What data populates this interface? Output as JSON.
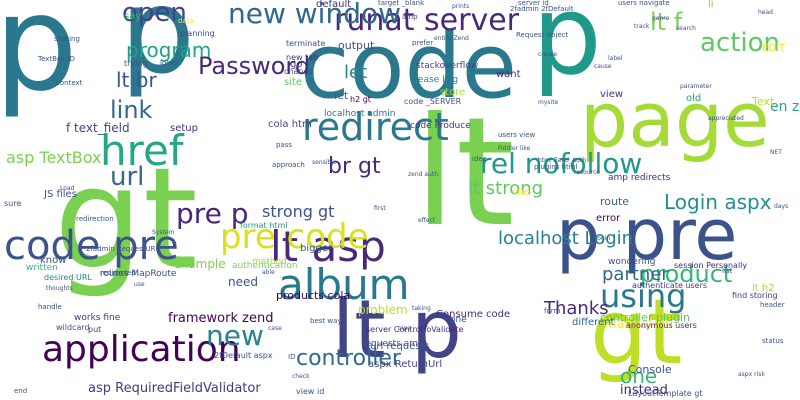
{
  "words": [
    {
      "text": "p",
      "color": "#2a788e"
    },
    {
      "text": "gt",
      "color": "#7ad151"
    },
    {
      "text": "lt",
      "color": "#7ad151"
    },
    {
      "text": "code",
      "color": "#2a788e"
    },
    {
      "text": "page",
      "color": "#a5db36"
    },
    {
      "text": "p pre",
      "color": "#3b528b"
    },
    {
      "text": "p",
      "color": "#2a788e"
    },
    {
      "text": "gt",
      "color": "#bddf26"
    },
    {
      "text": "p",
      "color": "#1f9a8a"
    },
    {
      "text": "lt p",
      "color": "#414487"
    },
    {
      "text": "album",
      "color": "#2a788e"
    },
    {
      "text": "lt asp",
      "color": "#482878"
    },
    {
      "text": "code pre",
      "color": "#3b528b"
    },
    {
      "text": "application",
      "color": "#440154"
    },
    {
      "text": "pre code",
      "color": "#d8e219"
    },
    {
      "text": "href",
      "color": "#22a884"
    },
    {
      "text": "redirect",
      "color": "#2a788e"
    },
    {
      "text": "runat server",
      "color": "#482878"
    },
    {
      "text": "open",
      "color": "#414487"
    },
    {
      "text": "new window",
      "color": "#31688e"
    },
    {
      "text": "using",
      "color": "#2a788e"
    },
    {
      "text": "rel nofollow",
      "color": "#1f9a8a"
    },
    {
      "text": "pre p",
      "color": "#482878"
    },
    {
      "text": "url",
      "color": "#31688e"
    },
    {
      "text": "new",
      "color": "#26828e"
    },
    {
      "text": "action",
      "color": "#5ec962"
    },
    {
      "text": "product",
      "color": "#35b779"
    },
    {
      "text": "Password",
      "color": "#482878"
    },
    {
      "text": "link",
      "color": "#31688e"
    },
    {
      "text": "controller",
      "color": "#31688e"
    },
    {
      "text": "lt f",
      "color": "#7ad151"
    },
    {
      "text": "br gt",
      "color": "#482878"
    },
    {
      "text": "Login aspx",
      "color": "#21918c"
    },
    {
      "text": "Thanks",
      "color": "#482878"
    },
    {
      "text": "lt strong",
      "color": "#5ec962"
    },
    {
      "text": "localhost Login",
      "color": "#26828e"
    },
    {
      "text": "one",
      "color": "#35b779"
    },
    {
      "text": "program",
      "color": "#20a486"
    },
    {
      "text": "lt br",
      "color": "#3b528b"
    },
    {
      "text": "partner",
      "color": "#31688e"
    },
    {
      "text": "strong gt",
      "color": "#3b528b"
    },
    {
      "text": "asp TextBox",
      "color": "#7ad151"
    },
    {
      "text": "let",
      "color": "#26828e"
    },
    {
      "text": "en zend",
      "color": "#22a884"
    },
    {
      "text": "asp RequiredFieldValidator",
      "color": "#443983"
    },
    {
      "text": "framework zend",
      "color": "#440154"
    },
    {
      "text": "manual en",
      "color": "#fde725"
    },
    {
      "text": "problem",
      "color": "#b5de2b"
    },
    {
      "text": "instead",
      "color": "#482878"
    },
    {
      "text": "f text_field",
      "color": "#414487"
    },
    {
      "text": "example",
      "color": "#7ad151"
    },
    {
      "text": "products cola",
      "color": "#440154"
    },
    {
      "text": "need",
      "color": "#3b528b"
    },
    {
      "text": "controller plugin",
      "color": "#5ec962"
    },
    {
      "text": "Text",
      "color": "#bddf26"
    },
    {
      "text": "say",
      "color": "#35b779"
    },
    {
      "text": "output",
      "color": "#3b528b"
    },
    {
      "text": "default",
      "color": "#472d7b"
    },
    {
      "text": "go",
      "color": "#443983"
    },
    {
      "text": "lt h2",
      "color": "#9fda3a"
    },
    {
      "text": "li",
      "color": "#7ad151"
    },
    {
      "text": "old",
      "color": "#20a486"
    },
    {
      "text": "view",
      "color": "#46327e"
    },
    {
      "text": "route",
      "color": "#31688e"
    },
    {
      "text": "error",
      "color": "#440154"
    },
    {
      "text": "Console",
      "color": "#3b528b"
    },
    {
      "text": "different",
      "color": "#31688e"
    },
    {
      "text": "line",
      "color": "#fde725"
    },
    {
      "text": "JS files",
      "color": "#3b528b"
    },
    {
      "text": "setup",
      "color": "#472d7b"
    },
    {
      "text": "EDIT",
      "color": "#fde725"
    },
    {
      "text": "store",
      "color": "#a5db36"
    },
    {
      "text": "url requests",
      "color": "#3b528b"
    },
    {
      "text": "aspx ReturnUrl",
      "color": "#414487"
    },
    {
      "text": "site",
      "color": "#5ec962"
    },
    {
      "text": "want",
      "color": "#472d7b"
    },
    {
      "text": "cola htm",
      "color": "#3e4989"
    },
    {
      "text": "authentication",
      "color": "#7ad151"
    },
    {
      "text": "bigger",
      "color": "#3b528b"
    },
    {
      "text": "method",
      "color": "#b5de2b"
    },
    {
      "text": "Consume code",
      "color": "#472d7b"
    },
    {
      "text": "let",
      "color": "#31688e"
    },
    {
      "text": "code Produce",
      "color": "#443983"
    },
    {
      "text": "localhost admin",
      "color": "#2a788e"
    },
    {
      "text": "stackoverflow",
      "color": "#414487"
    },
    {
      "text": "amp redirects",
      "color": "#472d7b"
    },
    {
      "text": "requests amp",
      "color": "#3b528b"
    },
    {
      "text": "Please Log",
      "color": "#26828e"
    },
    {
      "text": "routes MapRoute",
      "color": "#3b528b"
    },
    {
      "text": "format html",
      "color": "#1fa187"
    },
    {
      "text": "know",
      "color": "#3b528b"
    },
    {
      "text": "written",
      "color": "#35b779"
    },
    {
      "text": "one",
      "color": "#3b528b"
    },
    {
      "text": "works fine",
      "color": "#443983"
    },
    {
      "text": "wondering",
      "color": "#3b528b"
    },
    {
      "text": "session Personally",
      "color": "#482878"
    },
    {
      "text": "find storing",
      "color": "#443983"
    },
    {
      "text": "authenticate users",
      "color": "#443983"
    },
    {
      "text": "anonymous users",
      "color": "#482878"
    },
    {
      "text": "LayoutTemplate gt",
      "color": "#3b528b"
    },
    {
      "text": "server ControlToValidate",
      "color": "#482878"
    },
    {
      "text": "desired URL",
      "color": "#26828e"
    },
    {
      "text": "h2 gt",
      "color": "#440154"
    },
    {
      "text": "new tab",
      "color": "#472d7b"
    },
    {
      "text": "change",
      "color": "#3b528b"
    },
    {
      "text": "terminate",
      "color": "#3b528b"
    },
    {
      "text": "planning",
      "color": "#3e4989"
    },
    {
      "text": "trying",
      "color": "#3b528b"
    },
    {
      "text": "data",
      "color": "#fde725"
    },
    {
      "text": "amp",
      "color": "#414487"
    },
    {
      "text": "view id",
      "color": "#3b528b"
    },
    {
      "text": "put",
      "color": "#443983"
    },
    {
      "text": "2fDefault aspx",
      "color": "#3b528b"
    },
    {
      "text": "code _SERVER",
      "color": "#3b528b"
    },
    {
      "text": "pass",
      "color": "#3b528b"
    },
    {
      "text": "wildcard",
      "color": "#3b528b"
    },
    {
      "text": "approach",
      "color": "#3b528b"
    },
    {
      "text": "best way",
      "color": "#3b528b"
    },
    {
      "text": "ID",
      "color": "#3b528b"
    },
    {
      "text": "redirection",
      "color": "#3b528b"
    },
    {
      "text": "redirected",
      "color": "#3b528b"
    },
    {
      "text": "Request object",
      "color": "#3b528b"
    },
    {
      "text": "server id",
      "color": "#3b528b"
    },
    {
      "text": "2fadmin 2fDefault",
      "color": "#3b528b"
    },
    {
      "text": "target _blank",
      "color": "#3b528b"
    },
    {
      "text": "users navigate",
      "color": "#3b528b"
    },
    {
      "text": "prefer",
      "color": "#3b528b"
    },
    {
      "text": "looks",
      "color": "#3b528b"
    },
    {
      "text": "shifting",
      "color": "#3b528b"
    },
    {
      "text": "context",
      "color": "#3b528b"
    },
    {
      "text": "TextBox ID",
      "color": "#3b528b"
    },
    {
      "text": "idea",
      "color": "#3b528b"
    },
    {
      "text": "users view",
      "color": "#3b528b"
    },
    {
      "text": "Fiddler like",
      "color": "#3b528b"
    },
    {
      "text": "html Zend_Auth",
      "color": "#3b528b"
    },
    {
      "text": "plugins html",
      "color": "#3b528b"
    },
    {
      "text": "2fadmin RequestURL",
      "color": "#3b528b"
    },
    {
      "text": "end",
      "color": "#3b528b"
    },
    {
      "text": "cause",
      "color": "#3b528b"
    },
    {
      "text": "sure",
      "color": "#3b528b"
    },
    {
      "text": "handle",
      "color": "#3b528b"
    },
    {
      "text": "thoughts",
      "color": "#3b528b"
    },
    {
      "text": "form",
      "color": "#3b528b"
    },
    {
      "text": "list",
      "color": "#3b528b"
    },
    {
      "text": "header",
      "color": "#3b528b"
    },
    {
      "text": "status",
      "color": "#3b528b"
    },
    {
      "text": "days",
      "color": "#3b528b"
    },
    {
      "text": "NET",
      "color": "#3b528b"
    },
    {
      "text": "aspx risk",
      "color": "#3b528b"
    },
    {
      "text": "use",
      "color": "#3b528b"
    },
    {
      "text": "mysite",
      "color": "#3b528b"
    },
    {
      "text": "genre",
      "color": "#3b528b"
    },
    {
      "text": "search",
      "color": "#3b528b"
    },
    {
      "text": "parameter",
      "color": "#3b528b"
    },
    {
      "text": "appreciated",
      "color": "#3b528b"
    },
    {
      "text": "head",
      "color": "#3b528b"
    },
    {
      "text": "track",
      "color": "#3b528b"
    },
    {
      "text": "label",
      "color": "#3b528b"
    },
    {
      "text": "System",
      "color": "#3b528b"
    },
    {
      "text": "able",
      "color": "#3b528b"
    },
    {
      "text": "check",
      "color": "#3b528b"
    },
    {
      "text": "case",
      "color": "#3b528b"
    },
    {
      "text": "first",
      "color": "#3b528b"
    },
    {
      "text": "effect",
      "color": "#3b528b"
    },
    {
      "text": "taking",
      "color": "#3b528b"
    },
    {
      "text": "zend auth",
      "color": "#3b528b"
    },
    {
      "text": "sensible",
      "color": "#3b528b"
    },
    {
      "text": "Login",
      "color": "#3b528b"
    },
    {
      "text": "resource",
      "color": "#3b528b"
    },
    {
      "text": "pipe",
      "color": "#3b528b"
    },
    {
      "text": "create",
      "color": "#3b528b"
    },
    {
      "text": "entire Zend",
      "color": "#3b528b"
    },
    {
      "text": "prints",
      "color": "#3b528b"
    },
    {
      "text": "Load",
      "color": "#3b528b"
    }
  ]
}
